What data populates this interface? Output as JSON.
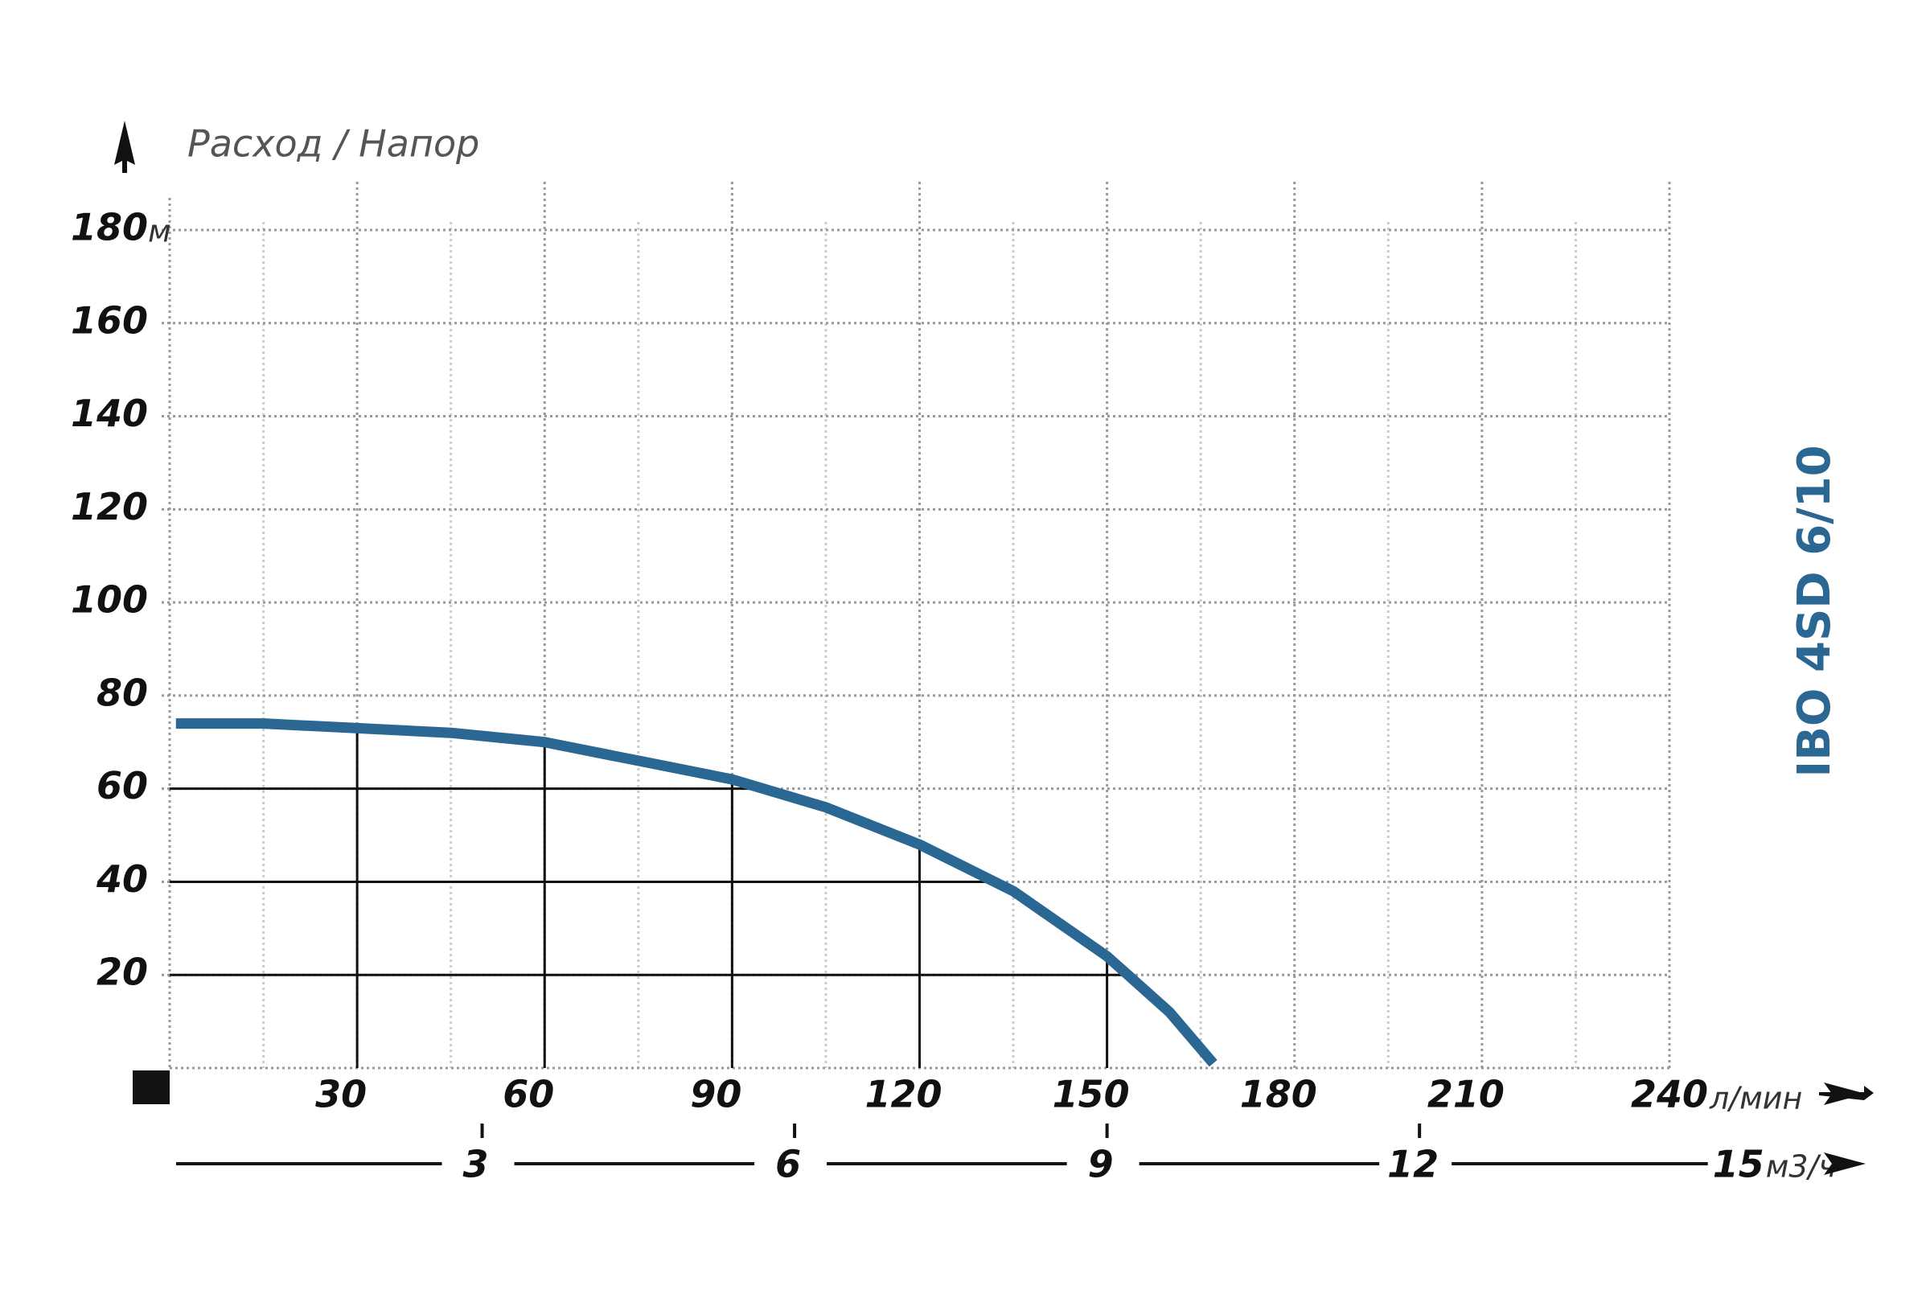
{
  "chart_data": {
    "type": "line",
    "title": "IBO 4SD 6/10",
    "axis_label": "Расход / Напор",
    "y_unit": "м",
    "x_unit": "л/мин",
    "x2_unit": "м3/ч",
    "x": [
      1,
      15,
      30,
      45,
      60,
      75,
      90,
      105,
      120,
      135,
      150,
      160,
      167
    ],
    "series": [
      {
        "name": "IBO 4SD 6/10",
        "color": "#2a6792",
        "values": [
          74,
          74,
          73,
          72,
          70,
          66,
          62,
          56,
          48,
          38,
          24,
          12,
          1
        ]
      }
    ],
    "xlim": [
      0,
      240
    ],
    "xticks": [
      30,
      60,
      90,
      120,
      150,
      180,
      210,
      240
    ],
    "x2lim": [
      0,
      14.4
    ],
    "x2ticks": [
      3,
      6,
      9,
      12,
      15
    ],
    "ylim": [
      0,
      180
    ],
    "yticks": [
      20,
      40,
      60,
      80,
      100,
      120,
      140,
      160,
      180
    ],
    "grid": true
  }
}
